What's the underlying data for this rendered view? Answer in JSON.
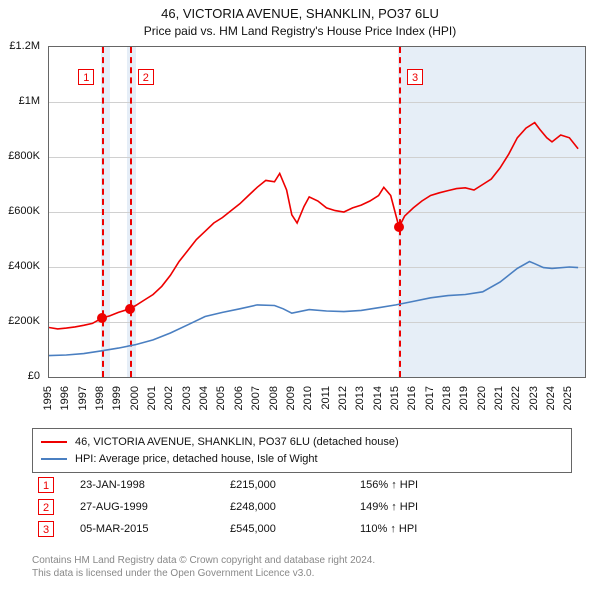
{
  "title": {
    "line1": "46, VICTORIA AVENUE, SHANKLIN, PO37 6LU",
    "line2": "Price paid vs. HM Land Registry's House Price Index (HPI)"
  },
  "chart": {
    "type": "line",
    "background_color": "#ffffff",
    "grid_color": "#d0d0d0",
    "axis_color": "#666666",
    "font_size": 11,
    "x": {
      "min": 1995,
      "max": 2025.9,
      "ticks": [
        1995,
        1996,
        1997,
        1998,
        1999,
        2000,
        2001,
        2002,
        2003,
        2004,
        2005,
        2006,
        2007,
        2008,
        2009,
        2010,
        2011,
        2012,
        2013,
        2014,
        2015,
        2016,
        2017,
        2018,
        2019,
        2020,
        2021,
        2022,
        2023,
        2024,
        2025
      ]
    },
    "y": {
      "min": 0,
      "max": 1200000,
      "ticks": [
        0,
        200000,
        400000,
        600000,
        800000,
        1000000,
        1200000
      ],
      "tick_labels": [
        "£0",
        "£200K",
        "£400K",
        "£600K",
        "£800K",
        "£1M",
        "£1.2M"
      ]
    },
    "bands": [
      {
        "from": 1998.0,
        "to": 1998.5,
        "color": "#e6eef7"
      },
      {
        "from": 1999.5,
        "to": 2000.0,
        "color": "#e6eef7"
      },
      {
        "from": 2015.1,
        "to": 2025.9,
        "color": "#e6eef7"
      }
    ],
    "series": [
      {
        "name": "46, VICTORIA AVENUE, SHANKLIN, PO37 6LU (detached house)",
        "color": "#ee0000",
        "width": 1.6,
        "points": [
          [
            1995.0,
            180000
          ],
          [
            1995.5,
            175000
          ],
          [
            1996.0,
            178000
          ],
          [
            1996.5,
            182000
          ],
          [
            1997.0,
            188000
          ],
          [
            1997.5,
            195000
          ],
          [
            1998.07,
            215000
          ],
          [
            1998.5,
            222000
          ],
          [
            1999.0,
            235000
          ],
          [
            1999.66,
            248000
          ],
          [
            2000.0,
            260000
          ],
          [
            2000.5,
            280000
          ],
          [
            2001.0,
            300000
          ],
          [
            2001.5,
            330000
          ],
          [
            2002.0,
            370000
          ],
          [
            2002.5,
            420000
          ],
          [
            2003.0,
            460000
          ],
          [
            2003.5,
            500000
          ],
          [
            2004.0,
            530000
          ],
          [
            2004.5,
            560000
          ],
          [
            2005.0,
            580000
          ],
          [
            2005.5,
            605000
          ],
          [
            2006.0,
            630000
          ],
          [
            2006.5,
            660000
          ],
          [
            2007.0,
            690000
          ],
          [
            2007.5,
            715000
          ],
          [
            2008.0,
            710000
          ],
          [
            2008.3,
            740000
          ],
          [
            2008.7,
            680000
          ],
          [
            2009.0,
            590000
          ],
          [
            2009.3,
            560000
          ],
          [
            2009.7,
            620000
          ],
          [
            2010.0,
            655000
          ],
          [
            2010.5,
            640000
          ],
          [
            2011.0,
            615000
          ],
          [
            2011.5,
            605000
          ],
          [
            2012.0,
            600000
          ],
          [
            2012.5,
            615000
          ],
          [
            2013.0,
            625000
          ],
          [
            2013.5,
            640000
          ],
          [
            2014.0,
            660000
          ],
          [
            2014.3,
            690000
          ],
          [
            2014.7,
            660000
          ],
          [
            2015.18,
            545000
          ],
          [
            2015.5,
            585000
          ],
          [
            2016.0,
            615000
          ],
          [
            2016.5,
            640000
          ],
          [
            2017.0,
            660000
          ],
          [
            2017.5,
            670000
          ],
          [
            2018.0,
            678000
          ],
          [
            2018.5,
            685000
          ],
          [
            2019.0,
            688000
          ],
          [
            2019.5,
            680000
          ],
          [
            2020.0,
            700000
          ],
          [
            2020.5,
            720000
          ],
          [
            2021.0,
            760000
          ],
          [
            2021.5,
            810000
          ],
          [
            2022.0,
            870000
          ],
          [
            2022.5,
            905000
          ],
          [
            2023.0,
            925000
          ],
          [
            2023.3,
            900000
          ],
          [
            2023.7,
            870000
          ],
          [
            2024.0,
            855000
          ],
          [
            2024.5,
            880000
          ],
          [
            2025.0,
            870000
          ],
          [
            2025.5,
            830000
          ]
        ]
      },
      {
        "name": "HPI: Average price, detached house, Isle of Wight",
        "color": "#4a7fc1",
        "width": 1.6,
        "points": [
          [
            1995.0,
            78000
          ],
          [
            1996.0,
            80000
          ],
          [
            1997.0,
            85000
          ],
          [
            1998.0,
            95000
          ],
          [
            1999.0,
            105000
          ],
          [
            2000.0,
            118000
          ],
          [
            2001.0,
            135000
          ],
          [
            2002.0,
            160000
          ],
          [
            2003.0,
            190000
          ],
          [
            2004.0,
            220000
          ],
          [
            2005.0,
            235000
          ],
          [
            2006.0,
            248000
          ],
          [
            2007.0,
            262000
          ],
          [
            2008.0,
            260000
          ],
          [
            2008.5,
            248000
          ],
          [
            2009.0,
            232000
          ],
          [
            2010.0,
            245000
          ],
          [
            2011.0,
            240000
          ],
          [
            2012.0,
            238000
          ],
          [
            2013.0,
            242000
          ],
          [
            2014.0,
            252000
          ],
          [
            2015.0,
            262000
          ],
          [
            2016.0,
            275000
          ],
          [
            2017.0,
            288000
          ],
          [
            2018.0,
            296000
          ],
          [
            2019.0,
            300000
          ],
          [
            2020.0,
            310000
          ],
          [
            2021.0,
            345000
          ],
          [
            2022.0,
            395000
          ],
          [
            2022.7,
            420000
          ],
          [
            2023.0,
            412000
          ],
          [
            2023.5,
            398000
          ],
          [
            2024.0,
            395000
          ],
          [
            2025.0,
            400000
          ],
          [
            2025.5,
            398000
          ]
        ]
      }
    ],
    "events": [
      {
        "n": "1",
        "x": 1998.07,
        "date": "23-JAN-1998",
        "price": "£215,000",
        "rel": "156% ↑ HPI",
        "marker_y": 215000
      },
      {
        "n": "2",
        "x": 1999.66,
        "date": "27-AUG-1999",
        "price": "£248,000",
        "rel": "149% ↑ HPI",
        "marker_y": 248000
      },
      {
        "n": "3",
        "x": 2015.18,
        "date": "05-MAR-2015",
        "price": "£545,000",
        "rel": "110% ↑ HPI",
        "marker_y": 545000
      }
    ]
  },
  "legend": {
    "items": [
      {
        "label": "46, VICTORIA AVENUE, SHANKLIN, PO37 6LU (detached house)",
        "color": "#ee0000"
      },
      {
        "label": "HPI: Average price, detached house, Isle of Wight",
        "color": "#4a7fc1"
      }
    ]
  },
  "footer": {
    "line1": "Contains HM Land Registry data © Crown copyright and database right 2024.",
    "line2": "This data is licensed under the Open Government Licence v3.0."
  }
}
